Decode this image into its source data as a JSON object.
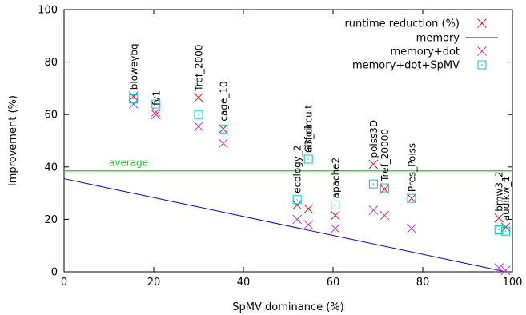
{
  "chart_data": {
    "type": "scatter",
    "xlabel": "SpMV dominance (%)",
    "ylabel": "improvement (%)",
    "xlim": [
      0,
      100
    ],
    "ylim": [
      0,
      100
    ],
    "xticks": [
      "0",
      "20",
      "40",
      "60",
      "80",
      "100"
    ],
    "yticks": [
      "0",
      "20",
      "40",
      "60",
      "80",
      "100"
    ],
    "legend_position": "top-right",
    "series": [
      {
        "name": "runtime reduction (%)",
        "marker": "x",
        "color": "#e41a1c",
        "points": [
          {
            "x": 15.5,
            "y": 67
          },
          {
            "x": 20.5,
            "y": 60
          },
          {
            "x": 30,
            "y": 66.5
          },
          {
            "x": 35.5,
            "y": 54.5
          },
          {
            "x": 52,
            "y": 25.5
          },
          {
            "x": 54.5,
            "y": 24
          },
          {
            "x": 60.5,
            "y": 21.5
          },
          {
            "x": 69,
            "y": 41
          },
          {
            "x": 71.5,
            "y": 31.5
          },
          {
            "x": 77.5,
            "y": 28
          },
          {
            "x": 97,
            "y": 20.5
          },
          {
            "x": 98.5,
            "y": 17
          }
        ]
      },
      {
        "name": "memory",
        "type": "line",
        "color": "#0000cc",
        "points": [
          {
            "x": 0,
            "y": 35.5
          },
          {
            "x": 98.5,
            "y": 0
          }
        ]
      },
      {
        "name": "memory+dot",
        "marker": "x",
        "color": "#cc33cc",
        "points": [
          {
            "x": 15.5,
            "y": 64
          },
          {
            "x": 20.5,
            "y": 61
          },
          {
            "x": 30,
            "y": 55.5
          },
          {
            "x": 35.5,
            "y": 49
          },
          {
            "x": 52,
            "y": 20
          },
          {
            "x": 54.5,
            "y": 18
          },
          {
            "x": 60.5,
            "y": 16.5
          },
          {
            "x": 69,
            "y": 23.5
          },
          {
            "x": 71.5,
            "y": 21.5
          },
          {
            "x": 77.5,
            "y": 16.5
          },
          {
            "x": 97,
            "y": 1.5
          },
          {
            "x": 98.5,
            "y": 0.5
          }
        ]
      },
      {
        "name": "memory+dot+SpMV",
        "marker": "square",
        "color": "#00cccc",
        "points": [
          {
            "x": 15.5,
            "y": 66
          },
          {
            "x": 20.5,
            "y": 64
          },
          {
            "x": 30,
            "y": 60
          },
          {
            "x": 35.5,
            "y": 54.5
          },
          {
            "x": 52,
            "y": 27.5
          },
          {
            "x": 54.5,
            "y": 43
          },
          {
            "x": 60.5,
            "y": 25.5
          },
          {
            "x": 69,
            "y": 33.5
          },
          {
            "x": 71.5,
            "y": 32
          },
          {
            "x": 77.5,
            "y": 28
          },
          {
            "x": 97,
            "y": 16
          },
          {
            "x": 98.5,
            "y": 15.5
          }
        ]
      }
    ],
    "average": {
      "label": "average",
      "y": 38.5,
      "color": "#00dd00"
    },
    "annotations": [
      {
        "text": "bloweybq",
        "x": 15.5,
        "y": 67
      },
      {
        "text": "fv1",
        "x": 20.5,
        "y": 61
      },
      {
        "text": "Tref_2000",
        "x": 30,
        "y": 66.5
      },
      {
        "text": "cage_10",
        "x": 35.5,
        "y": 55
      },
      {
        "text": "ecology_2",
        "x": 52,
        "y": 27.5
      },
      {
        "text": "G3_circuit",
        "x": 54.5,
        "y": 43
      },
      {
        "text": "airfoil",
        "x": 54.5,
        "y": 43
      },
      {
        "text": "apache2",
        "x": 60.5,
        "y": 25.5
      },
      {
        "text": "poiss3D",
        "x": 69,
        "y": 41
      },
      {
        "text": "Tref_20000",
        "x": 71.5,
        "y": 32
      },
      {
        "text": "Pres_Poiss",
        "x": 77.5,
        "y": 28
      },
      {
        "text": "bmw3_2",
        "x": 97,
        "y": 20.5
      },
      {
        "text": "audikw_1",
        "x": 98.5,
        "y": 17
      }
    ]
  }
}
